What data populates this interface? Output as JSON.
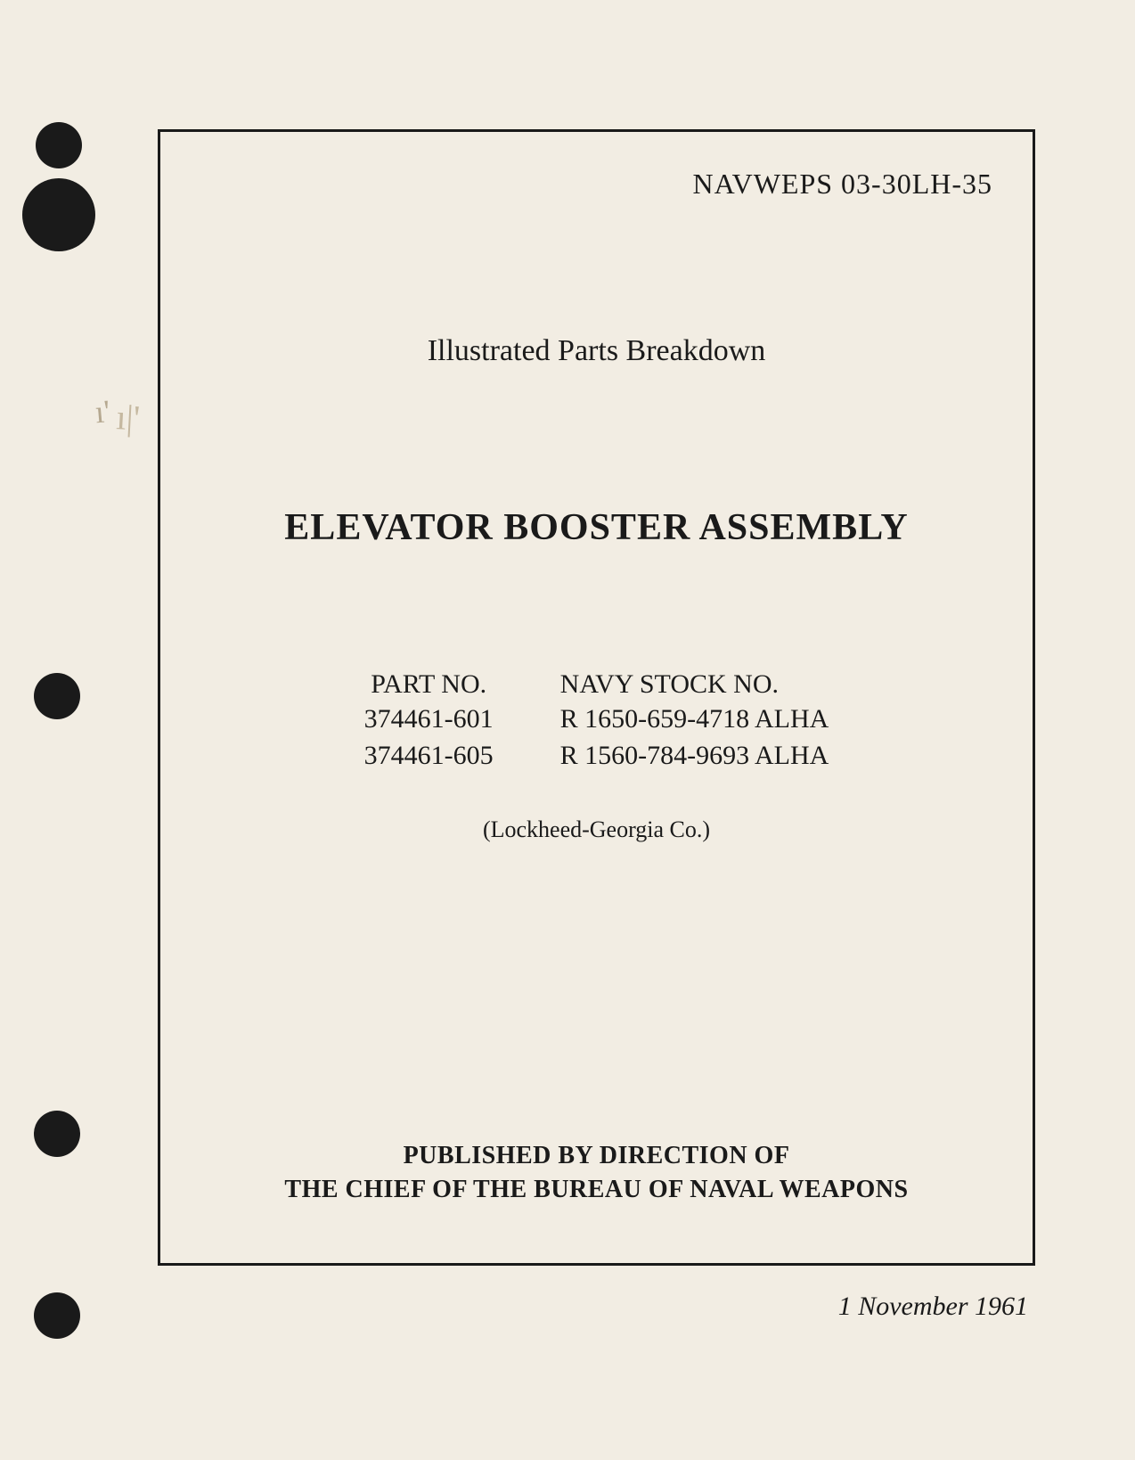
{
  "doc_number": "NAVWEPS 03-30LH-35",
  "subtitle": "Illustrated Parts Breakdown",
  "main_title": "ELEVATOR BOOSTER ASSEMBLY",
  "parts": {
    "part_no_header": "PART NO.",
    "stock_no_header": "NAVY STOCK NO.",
    "part_no_1": "374461-601",
    "part_no_2": "374461-605",
    "stock_no_1": "R  1650-659-4718 ALHA",
    "stock_no_2": "R 1560-784-9693 ALHA"
  },
  "manufacturer": "(Lockheed-Georgia Co.)",
  "publisher_line_1": "PUBLISHED BY DIRECTION OF",
  "publisher_line_2": "THE CHIEF OF THE BUREAU OF NAVAL WEAPONS",
  "date": "1 November 1961"
}
